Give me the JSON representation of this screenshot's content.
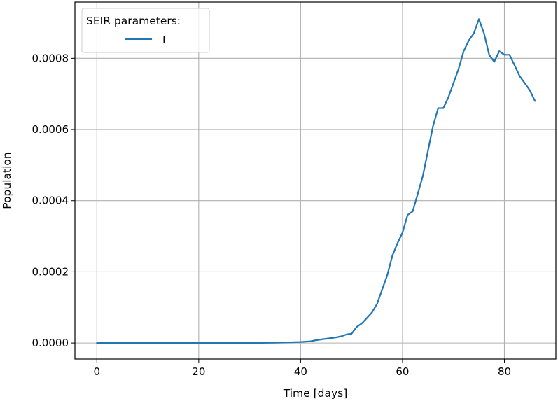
{
  "chart_data": {
    "type": "line",
    "title": "",
    "xlabel": "Time [days]",
    "ylabel": "Population",
    "xlim": [
      -4.3,
      90.1
    ],
    "ylim": [
      -4.5e-05,
      0.000958
    ],
    "xticks": [
      0,
      20,
      40,
      60,
      80
    ],
    "xtick_labels": [
      "0",
      "20",
      "40",
      "60",
      "80"
    ],
    "yticks": [
      0.0,
      0.0002,
      0.0004,
      0.0006,
      0.0008
    ],
    "ytick_labels": [
      "0.0000",
      "0.0002",
      "0.0004",
      "0.0006",
      "0.0008"
    ],
    "grid": true,
    "legend": {
      "title": "SEIR parameters:",
      "position": "upper left",
      "entries": [
        "I"
      ]
    },
    "series": [
      {
        "name": "I",
        "color": "#1f77b4",
        "x": [
          0,
          5,
          10,
          15,
          20,
          25,
          30,
          35,
          38,
          40,
          42,
          43,
          44,
          45,
          46,
          47,
          48,
          49,
          50,
          51,
          52,
          53,
          54,
          55,
          56,
          57,
          58,
          59,
          60,
          61,
          62,
          63,
          64,
          65,
          66,
          67,
          68,
          69,
          70,
          71,
          72,
          73,
          74,
          75,
          76,
          77,
          78,
          79,
          80,
          81,
          82,
          83,
          84,
          85,
          86
        ],
        "values": [
          0.0,
          0.0,
          0.0,
          0.0,
          0.0,
          0.0,
          0.0,
          1e-06,
          2e-06,
          3e-06,
          5e-06,
          8e-06,
          1e-05,
          1.2e-05,
          1.4e-05,
          1.6e-05,
          1.9e-05,
          2.4e-05,
          2.6e-05,
          4.5e-05,
          5.5e-05,
          7e-05,
          8.6e-05,
          0.00011,
          0.00015,
          0.00019,
          0.000245,
          0.00028,
          0.00031,
          0.00036,
          0.00037,
          0.00042,
          0.00047,
          0.00054,
          0.00061,
          0.00066,
          0.00066,
          0.00069,
          0.00073,
          0.00077,
          0.00082,
          0.00085,
          0.00087,
          0.00091,
          0.00087,
          0.00081,
          0.00079,
          0.00082,
          0.00081,
          0.00081,
          0.00078,
          0.00075,
          0.00073,
          0.00071,
          0.00068
        ]
      }
    ]
  }
}
